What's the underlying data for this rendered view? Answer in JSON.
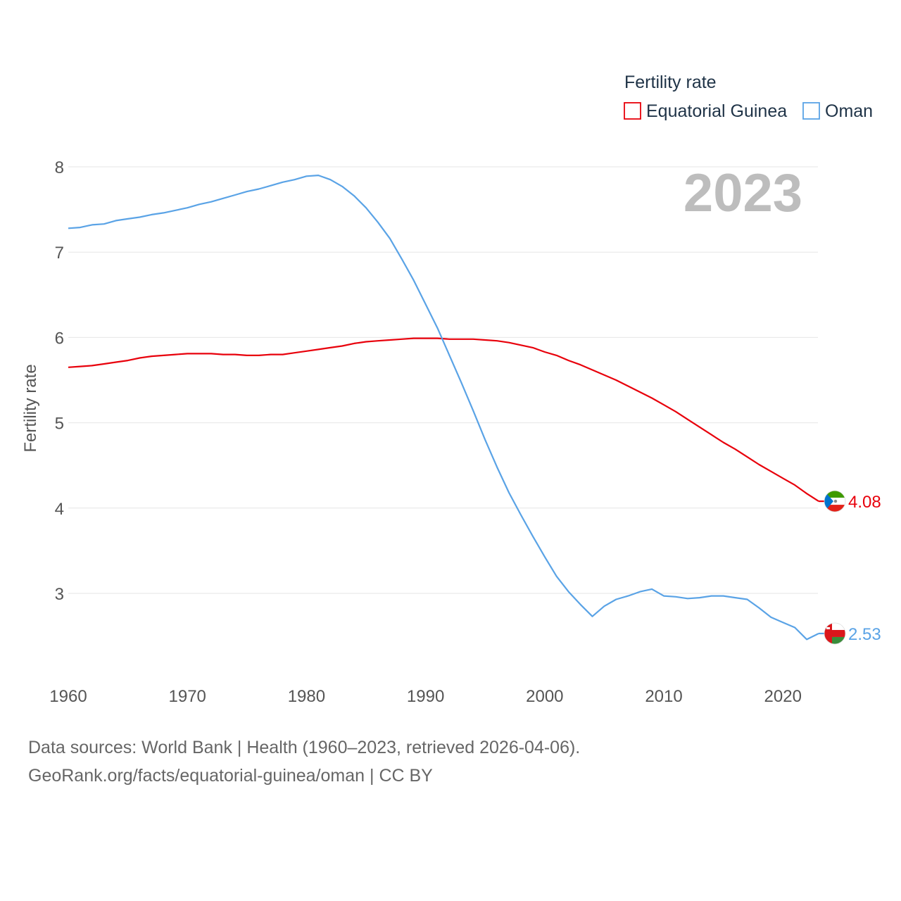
{
  "chart_data": {
    "type": "line",
    "title": "Fertility rate",
    "ylabel": "Fertility rate",
    "xlabel": "",
    "year_label": "2023",
    "xlim": [
      1960,
      2023
    ],
    "ylim": [
      2.2,
      8.3
    ],
    "x_ticks": [
      1960,
      1970,
      1980,
      1990,
      2000,
      2010,
      2020
    ],
    "y_ticks": [
      3,
      4,
      5,
      6,
      7,
      8
    ],
    "grid": true,
    "legend_position": "top-right",
    "x": [
      1960,
      1961,
      1962,
      1963,
      1964,
      1965,
      1966,
      1967,
      1968,
      1969,
      1970,
      1971,
      1972,
      1973,
      1974,
      1975,
      1976,
      1977,
      1978,
      1979,
      1980,
      1981,
      1982,
      1983,
      1984,
      1985,
      1986,
      1987,
      1988,
      1989,
      1990,
      1991,
      1992,
      1993,
      1994,
      1995,
      1996,
      1997,
      1998,
      1999,
      2000,
      2001,
      2002,
      2003,
      2004,
      2005,
      2006,
      2007,
      2008,
      2009,
      2010,
      2011,
      2012,
      2013,
      2014,
      2015,
      2016,
      2017,
      2018,
      2019,
      2020,
      2021,
      2022,
      2023
    ],
    "series": [
      {
        "name": "Equatorial Guinea",
        "color": "#e8000b",
        "end_label": "4.08",
        "flag": "equatorial-guinea-flag",
        "values": [
          5.65,
          5.66,
          5.67,
          5.69,
          5.71,
          5.73,
          5.76,
          5.78,
          5.79,
          5.8,
          5.81,
          5.81,
          5.81,
          5.8,
          5.8,
          5.79,
          5.79,
          5.8,
          5.8,
          5.82,
          5.84,
          5.86,
          5.88,
          5.9,
          5.93,
          5.95,
          5.96,
          5.97,
          5.98,
          5.99,
          5.99,
          5.99,
          5.98,
          5.98,
          5.98,
          5.97,
          5.96,
          5.94,
          5.91,
          5.88,
          5.83,
          5.79,
          5.73,
          5.68,
          5.62,
          5.56,
          5.5,
          5.43,
          5.36,
          5.29,
          5.21,
          5.13,
          5.04,
          4.95,
          4.86,
          4.77,
          4.69,
          4.6,
          4.51,
          4.43,
          4.35,
          4.27,
          4.17,
          4.08
        ]
      },
      {
        "name": "Oman",
        "color": "#5aa3e6",
        "end_label": "2.53",
        "flag": "oman-flag",
        "values": [
          7.28,
          7.29,
          7.32,
          7.33,
          7.37,
          7.39,
          7.41,
          7.44,
          7.46,
          7.49,
          7.52,
          7.56,
          7.59,
          7.63,
          7.67,
          7.71,
          7.74,
          7.78,
          7.82,
          7.85,
          7.89,
          7.9,
          7.85,
          7.77,
          7.66,
          7.52,
          7.35,
          7.16,
          6.92,
          6.67,
          6.39,
          6.11,
          5.79,
          5.47,
          5.14,
          4.8,
          4.48,
          4.18,
          3.92,
          3.67,
          3.43,
          3.2,
          3.02,
          2.87,
          2.73,
          2.85,
          2.93,
          2.97,
          3.02,
          3.05,
          2.97,
          2.96,
          2.94,
          2.95,
          2.97,
          2.97,
          2.95,
          2.93,
          2.83,
          2.72,
          2.66,
          2.6,
          2.46,
          2.53
        ]
      }
    ],
    "legend": {
      "title": "Fertility rate",
      "items": [
        "Equatorial Guinea",
        "Oman"
      ]
    }
  },
  "source": {
    "line1": "Data sources: World Bank | Health (1960–2023, retrieved 2026-04-06).",
    "line2": "GeoRank.org/facts/equatorial-guinea/oman | CC BY"
  }
}
